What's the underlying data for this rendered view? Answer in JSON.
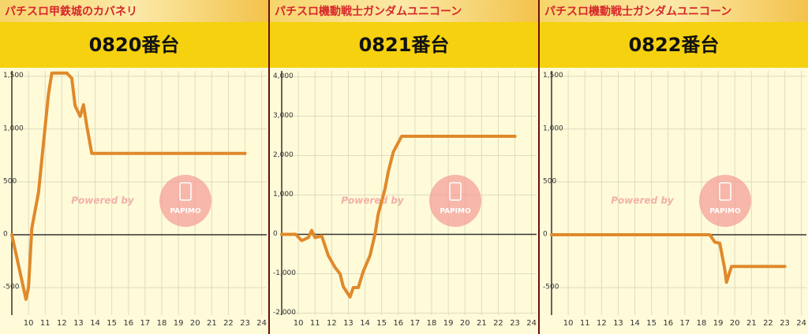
{
  "chart_data": [
    {
      "type": "line",
      "header": "パチスロ甲鉄城のカバネリ",
      "title": "0820番台",
      "watermark": "Powered by",
      "watermark_logo": "PAPIMO",
      "x": [
        9,
        9.85,
        10,
        10.2,
        10.6,
        11.2,
        11.4,
        12.3,
        12.6,
        12.8,
        13.1,
        13.3,
        13.5,
        13.8,
        23
      ],
      "values": [
        0,
        -610,
        -500,
        60,
        400,
        1330,
        1530,
        1530,
        1480,
        1220,
        1120,
        1230,
        1030,
        770,
        770
      ],
      "color": "#e0892b",
      "xlim": [
        9,
        24.3
      ],
      "ylim": [
        -760,
        1550
      ],
      "xticks": [
        10,
        11,
        12,
        13,
        14,
        15,
        16,
        17,
        18,
        19,
        20,
        21,
        22,
        23,
        24
      ],
      "yticks": [
        -500,
        0,
        500,
        {
          "value": 1000,
          "label": "1,000"
        },
        {
          "value": 1500,
          "label": "1,500"
        }
      ],
      "grid": true
    },
    {
      "type": "line",
      "header": "パチスロ機動戦士ガンダムユニコーン",
      "title": "0821番台",
      "watermark": "Powered by",
      "watermark_logo": "PAPIMO",
      "x": [
        9,
        9.85,
        10.2,
        10.6,
        10.8,
        11,
        11.4,
        11.8,
        12.2,
        12.5,
        12.7,
        13.1,
        13.3,
        13.6,
        13.9,
        14.3,
        14.6,
        14.8,
        15.2,
        15.4,
        15.7,
        16.2,
        23
      ],
      "values": [
        0,
        0,
        -160,
        -80,
        100,
        -80,
        -40,
        -540,
        -840,
        -1000,
        -1330,
        -1590,
        -1350,
        -1350,
        -940,
        -540,
        0,
        520,
        1150,
        1590,
        2090,
        2490,
        2490
      ],
      "color": "#e0892b",
      "xlim": [
        9,
        24.3
      ],
      "ylim": [
        -2050,
        4150
      ],
      "xticks": [
        10,
        11,
        12,
        13,
        14,
        15,
        16,
        17,
        18,
        19,
        20,
        21,
        22,
        23,
        24
      ],
      "yticks": [
        {
          "value": -2000,
          "label": "-2,000"
        },
        {
          "value": -1000,
          "label": "-1,000"
        },
        0,
        {
          "value": 1000,
          "label": "1,000"
        },
        {
          "value": 2000,
          "label": "2,000"
        },
        {
          "value": 3000,
          "label": "3,000"
        },
        {
          "value": 4000,
          "label": "4,000"
        }
      ],
      "grid": true
    },
    {
      "type": "line",
      "header": "パチスロ機動戦士ガンダムユニコーン",
      "title": "0822番台",
      "watermark": "Powered by",
      "watermark_logo": "PAPIMO",
      "x": [
        9,
        18.5,
        18.8,
        19.1,
        19.4,
        19.5,
        19.8,
        23
      ],
      "values": [
        0,
        0,
        -70,
        -80,
        -330,
        -450,
        -300,
        -300
      ],
      "color": "#e0892b",
      "xlim": [
        9,
        24.3
      ],
      "ylim": [
        -760,
        1550
      ],
      "xticks": [
        10,
        11,
        12,
        13,
        14,
        15,
        16,
        17,
        18,
        19,
        20,
        21,
        22,
        23,
        24
      ],
      "yticks": [
        -500,
        0,
        500,
        {
          "value": 1000,
          "label": "1,000"
        },
        {
          "value": 1500,
          "label": "1,500"
        }
      ],
      "grid": true
    }
  ]
}
